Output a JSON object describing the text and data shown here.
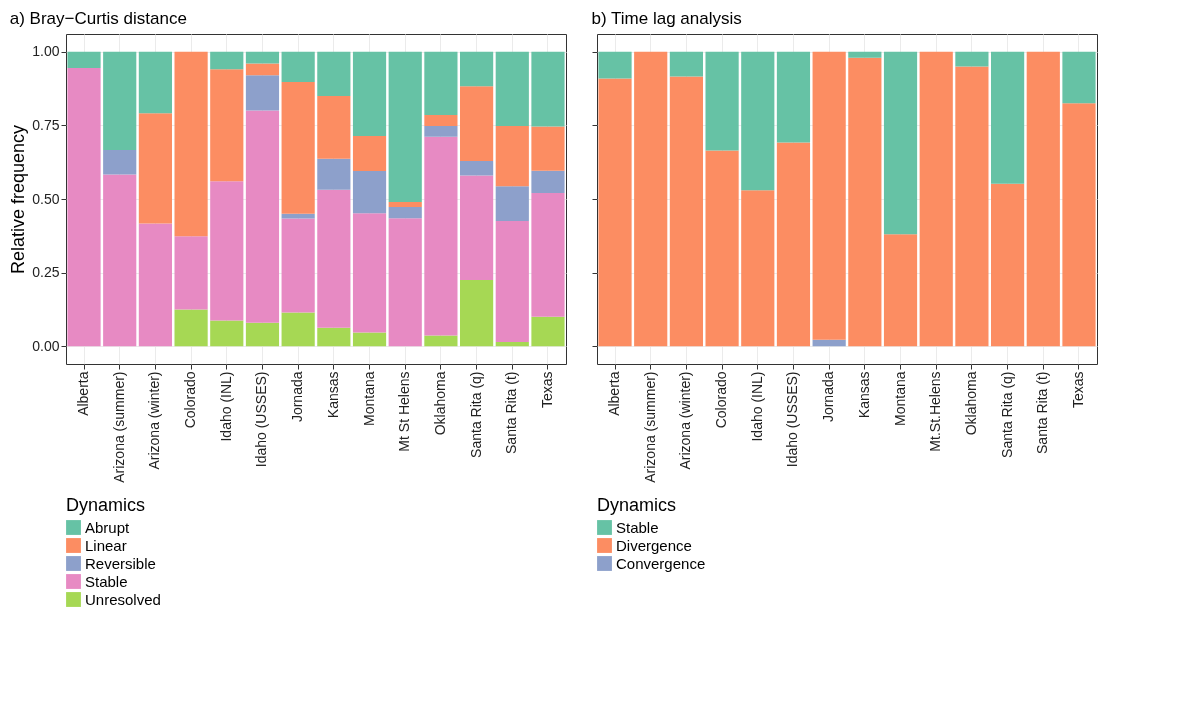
{
  "chart_data": [
    {
      "type": "bar",
      "title": "a) Bray−Curtis distance",
      "ylabel": "Relative frequency",
      "stacked": true,
      "grid": true,
      "legend": "bottom",
      "legend_title": "Dynamics",
      "categories": [
        "Alberta",
        "Arizona (summer)",
        "Arizona (winter)",
        "Colorado",
        "Idaho (INL)",
        "Idaho (USSES)",
        "Jornada",
        "Kansas",
        "Montana",
        "Mt St Helens",
        "Oklahoma",
        "Santa Rita (q)",
        "Santa Rita (t)",
        "Texas"
      ],
      "ylim": [
        -0.06,
        1.06
      ],
      "yticks": [
        {
          "value": 0,
          "label": "0.00"
        },
        {
          "value": 0.25,
          "label": "0.25"
        },
        {
          "value": 0.5,
          "label": "0.50"
        },
        {
          "value": 0.75,
          "label": "0.75"
        },
        {
          "value": 1,
          "label": "1.00"
        }
      ],
      "series": [
        {
          "name": "Unresolved",
          "color": "#a6d854",
          "values": [
            0,
            0,
            0,
            0.125,
            0.088,
            0.08,
            0.115,
            0.063,
            0.047,
            0,
            0.037,
            0.225,
            0.015,
            0.1
          ]
        },
        {
          "name": "Stable",
          "color": "#e78ac3",
          "values": [
            0.945,
            0.583,
            0.417,
            0.249,
            0.472,
            0.72,
            0.319,
            0.468,
            0.405,
            0.435,
            0.674,
            0.355,
            0.41,
            0.42
          ]
        },
        {
          "name": "Reversible",
          "color": "#8da0cb",
          "values": [
            0,
            0.083,
            0,
            0,
            0,
            0.12,
            0.016,
            0.106,
            0.143,
            0.038,
            0.037,
            0.049,
            0.118,
            0.076
          ]
        },
        {
          "name": "Linear",
          "color": "#fc8d62",
          "values": [
            0,
            0,
            0.374,
            0.626,
            0.38,
            0.04,
            0.447,
            0.213,
            0.119,
            0.017,
            0.037,
            0.254,
            0.205,
            0.15
          ]
        },
        {
          "name": "Abrupt",
          "color": "#66c2a5",
          "values": [
            0.055,
            0.334,
            0.209,
            0,
            0.06,
            0.04,
            0.103,
            0.15,
            0.286,
            0.51,
            0.215,
            0.117,
            0.252,
            0.254
          ]
        }
      ]
    },
    {
      "type": "bar",
      "title": "b) Time lag analysis",
      "stacked": true,
      "grid": true,
      "legend": "bottom",
      "legend_title": "Dynamics",
      "tick_labels": "x",
      "categories": [
        "Alberta",
        "Arizona (summer)",
        "Arizona (winter)",
        "Colorado",
        "Idaho (INL)",
        "Idaho (USSES)",
        "Jornada",
        "Kansas",
        "Montana",
        "Mt.St.Helens",
        "Oklahoma",
        "Santa Rita (q)",
        "Santa Rita (t)",
        "Texas"
      ],
      "ylim": [
        -0.06,
        1.06
      ],
      "yticks": [
        0,
        0.25,
        0.5,
        0.75,
        1
      ],
      "series": [
        {
          "name": "Convergence",
          "color": "#8da0cb",
          "values": [
            0,
            0,
            0,
            0,
            0,
            0,
            0.022,
            0,
            0,
            0,
            0,
            0,
            0,
            0
          ]
        },
        {
          "name": "Divergence",
          "color": "#fc8d62",
          "values": [
            0.909,
            1,
            0.916,
            0.665,
            0.53,
            0.692,
            0.978,
            0.979,
            0.38,
            1,
            0.95,
            0.552,
            1,
            0.825
          ]
        },
        {
          "name": "Stable",
          "color": "#66c2a5",
          "values": [
            0.091,
            0,
            0.084,
            0.335,
            0.47,
            0.308,
            0,
            0.021,
            0.62,
            0,
            0.05,
            0.448,
            0,
            0.175
          ]
        }
      ]
    }
  ]
}
